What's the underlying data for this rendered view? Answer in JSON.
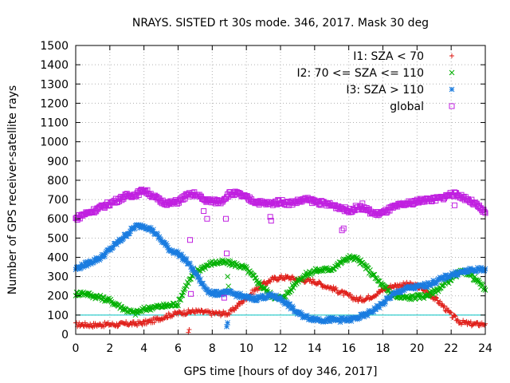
{
  "chart_data": {
    "type": "scatter",
    "title": "NRAYS. SISTED rt 30s mode. 346, 2017. Mask 30 deg",
    "xlabel": "GPS time [hours of doy 346, 2017]",
    "ylabel": "Number of GPS receiver-satellite rays",
    "xlim": [
      0,
      24
    ],
    "ylim": [
      0,
      1500
    ],
    "xticks": [
      0,
      2,
      4,
      6,
      8,
      10,
      12,
      14,
      16,
      18,
      20,
      22,
      24
    ],
    "yticks": [
      0,
      100,
      200,
      300,
      400,
      500,
      600,
      700,
      800,
      900,
      1000,
      1100,
      1200,
      1300,
      1400,
      1500
    ],
    "grid": true,
    "legend_position": "top-right",
    "reference_line": {
      "y": 100,
      "color": "#00c0c0"
    },
    "series": [
      {
        "name": "I1: SZA < 70",
        "marker": "+",
        "color": "#e0201b",
        "x": [
          0,
          0.5,
          1,
          1.5,
          2,
          2.5,
          3,
          3.5,
          4,
          4.5,
          5,
          5.5,
          6,
          6.5,
          7,
          7.5,
          8,
          8.5,
          9,
          9.5,
          10,
          10.5,
          11,
          11.5,
          12,
          12.5,
          13,
          13.5,
          14,
          14.5,
          15,
          15.5,
          16,
          16.5,
          17,
          17.5,
          18,
          18.5,
          19,
          19.5,
          20,
          20.5,
          21,
          21.5,
          22,
          22.5,
          23,
          23.5,
          24
        ],
        "y": [
          50,
          50,
          48,
          50,
          52,
          50,
          55,
          55,
          60,
          70,
          85,
          100,
          110,
          115,
          120,
          115,
          110,
          108,
          110,
          150,
          190,
          230,
          260,
          285,
          295,
          295,
          285,
          280,
          275,
          255,
          240,
          220,
          200,
          180,
          185,
          205,
          230,
          250,
          255,
          260,
          250,
          225,
          190,
          150,
          100,
          65,
          55,
          52,
          55
        ]
      },
      {
        "name": "I2: 70 <= SZA <= 110",
        "marker": "x",
        "color": "#00b000",
        "x": [
          0,
          0.5,
          1,
          1.5,
          2,
          2.5,
          3,
          3.5,
          4,
          4.5,
          5,
          5.5,
          6,
          6.5,
          7,
          7.5,
          8,
          8.5,
          9,
          9.5,
          10,
          10.5,
          11,
          11.5,
          12,
          12.5,
          13,
          13.5,
          14,
          14.5,
          15,
          15.5,
          16,
          16.5,
          17,
          17.5,
          18,
          18.5,
          19,
          19.5,
          20,
          20.5,
          21,
          21.5,
          22,
          22.5,
          23,
          23.5,
          24
        ],
        "y": [
          210,
          215,
          200,
          190,
          175,
          150,
          125,
          110,
          130,
          140,
          145,
          150,
          160,
          260,
          320,
          350,
          370,
          375,
          370,
          360,
          340,
          290,
          240,
          200,
          185,
          220,
          280,
          310,
          330,
          335,
          340,
          370,
          400,
          390,
          350,
          300,
          250,
          210,
          190,
          190,
          195,
          200,
          220,
          250,
          290,
          320,
          320,
          280,
          230
        ]
      },
      {
        "name": "I3: SZA > 110",
        "marker": "*",
        "color": "#1a7ce0",
        "x": [
          0,
          0.5,
          1,
          1.5,
          2,
          2.5,
          3,
          3.5,
          4,
          4.5,
          5,
          5.5,
          6,
          6.5,
          7,
          7.5,
          8,
          8.5,
          9,
          9.5,
          10,
          10.5,
          11,
          11.5,
          12,
          12.5,
          13,
          13.5,
          14,
          14.5,
          15,
          15.5,
          16,
          16.5,
          17,
          17.5,
          18,
          18.5,
          19,
          19.5,
          20,
          20.5,
          21,
          21.5,
          22,
          22.5,
          23,
          23.5,
          24
        ],
        "y": [
          340,
          360,
          380,
          400,
          440,
          480,
          520,
          560,
          565,
          540,
          490,
          440,
          420,
          380,
          320,
          250,
          210,
          215,
          215,
          205,
          190,
          185,
          195,
          200,
          185,
          150,
          110,
          90,
          80,
          75,
          75,
          75,
          75,
          85,
          100,
          130,
          160,
          200,
          225,
          240,
          245,
          255,
          270,
          290,
          310,
          320,
          330,
          335,
          340
        ]
      },
      {
        "name": "global",
        "marker": "square",
        "color": "#c020e0",
        "x": [
          0,
          0.5,
          1,
          1.5,
          2,
          2.5,
          3,
          3.5,
          4,
          4.5,
          5,
          5.5,
          6,
          6.5,
          7,
          7.5,
          8,
          8.5,
          9,
          9.5,
          10,
          10.5,
          11,
          11.5,
          12,
          12.5,
          13,
          13.5,
          14,
          14.5,
          15,
          15.5,
          16,
          16.5,
          17,
          17.5,
          18,
          18.5,
          19,
          19.5,
          20,
          20.5,
          21,
          21.5,
          22,
          22.5,
          23,
          23.5,
          24
        ],
        "y": [
          600,
          625,
          640,
          660,
          680,
          700,
          720,
          725,
          750,
          720,
          690,
          680,
          690,
          720,
          730,
          700,
          690,
          690,
          730,
          730,
          710,
          690,
          680,
          680,
          690,
          680,
          690,
          700,
          690,
          680,
          670,
          660,
          640,
          660,
          650,
          625,
          630,
          655,
          670,
          680,
          690,
          700,
          700,
          710,
          730,
          720,
          700,
          670,
          630
        ]
      }
    ],
    "outliers": [
      {
        "series": "I1: SZA < 70",
        "x": [
          6.6,
          6.65
        ],
        "y": [
          10,
          25
        ]
      },
      {
        "series": "I2: 70 <= SZA <= 110",
        "x": [
          8.9,
          8.95
        ],
        "y": [
          300,
          250
        ]
      },
      {
        "series": "I3: SZA > 110",
        "x": [
          8.85,
          8.9
        ],
        "y": [
          40,
          60
        ]
      },
      {
        "series": "global",
        "x": [
          6.7,
          6.75,
          7.5,
          7.7,
          8.7,
          8.8,
          8.85,
          11.4,
          11.45,
          15.6,
          15.7,
          16.8,
          22.2
        ],
        "y": [
          490,
          210,
          640,
          600,
          190,
          600,
          420,
          610,
          590,
          540,
          550,
          680,
          670
        ]
      }
    ]
  }
}
